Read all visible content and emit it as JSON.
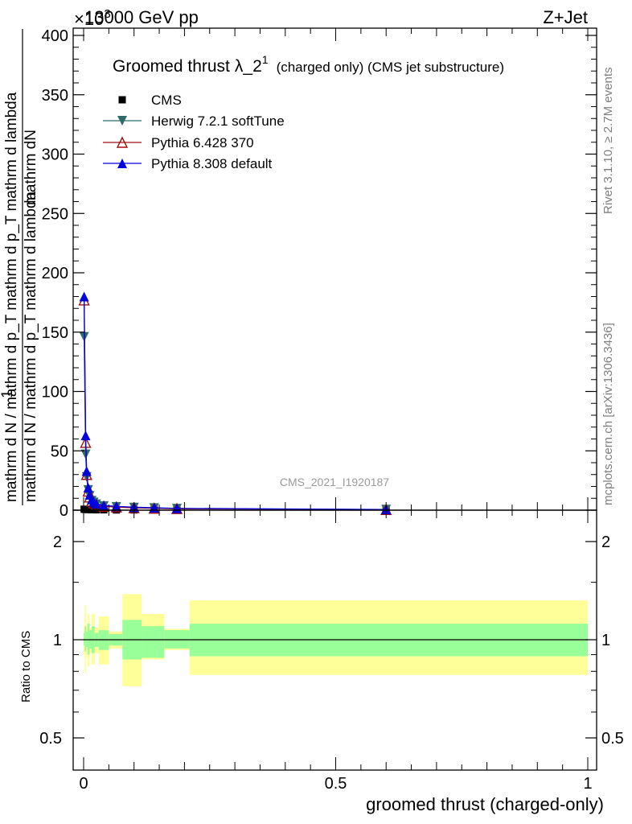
{
  "header": {
    "left_label": "13000 GeV pp",
    "right_label": "Z+Jet",
    "y_exponent": "×10",
    "y_exponent_sup": "3"
  },
  "side_labels": {
    "rivet": "Rivet 3.1.10, ≥ 2.7M events",
    "mcplots": "mcplots.cern.ch [arXiv:1306.3436]"
  },
  "watermark": "CMS_2021_I1920187",
  "colors": {
    "cms": "#000000",
    "herwig": "#2f6b6b",
    "pythia6": "#a01010",
    "pythia8": "#0000dd",
    "band_inner": "#99ff99",
    "band_outer": "#ffff99"
  },
  "chart_data": [
    {
      "type": "line",
      "panel": "main",
      "title": "Groomed thrust λ_2¹ (charged only) (CMS jet substructure)",
      "title_main": "Groomed thrust",
      "title_lambda": "λ_2",
      "title_sup": "1",
      "title_tail": "(charged only) (CMS jet substructure)",
      "ylabel_lines": [
        "mathrm d N / mathrm d p_T mathrm d lambda",
        "mathrm d N / mathrm d p_T mathrm d p_T mathrm d lambda",
        "1",
        "mathrm dN"
      ],
      "xlim": [
        0,
        1
      ],
      "ylim": [
        0,
        400
      ],
      "yticks": [
        0,
        50,
        100,
        150,
        200,
        250,
        300,
        350,
        400
      ],
      "legend_position": "top-left",
      "series": [
        {
          "name": "CMS",
          "marker": "square",
          "x": [
            0.001,
            0.004,
            0.009,
            0.016,
            0.025,
            0.04,
            0.065,
            0.1,
            0.14,
            0.185,
            0.6
          ],
          "y": [
            0.8,
            0.6,
            0.5,
            0.4,
            0.3,
            0.3,
            0.2,
            0.2,
            0.2,
            0.2,
            0.1
          ]
        },
        {
          "name": "Herwig 7.2.1 softTune",
          "marker": "triangle-down",
          "x": [
            0.001,
            0.004,
            0.006,
            0.009,
            0.012,
            0.016,
            0.02,
            0.025,
            0.04,
            0.065,
            0.1,
            0.14,
            0.185,
            0.6
          ],
          "y": [
            146,
            47,
            28,
            17,
            12,
            8,
            6.5,
            5,
            3.5,
            2.8,
            2.2,
            1.8,
            1.3,
            0.5
          ]
        },
        {
          "name": "Pythia 6.428 370",
          "marker": "triangle-open",
          "x": [
            0.001,
            0.004,
            0.006,
            0.009,
            0.012,
            0.016,
            0.02,
            0.025,
            0.04,
            0.065,
            0.1,
            0.14,
            0.185,
            0.6
          ],
          "y": [
            177,
            57,
            30,
            16,
            11,
            7.5,
            6,
            4.5,
            3.2,
            2.6,
            2.0,
            1.6,
            1.2,
            0.5
          ]
        },
        {
          "name": "Pythia 8.308 default",
          "marker": "triangle-up",
          "x": [
            0.001,
            0.004,
            0.006,
            0.009,
            0.012,
            0.016,
            0.02,
            0.025,
            0.04,
            0.065,
            0.1,
            0.14,
            0.185,
            0.6
          ],
          "y": [
            180,
            63,
            33,
            19,
            13,
            9,
            7,
            5.5,
            4,
            3.2,
            2.5,
            2.0,
            1.5,
            0.6
          ]
        }
      ]
    },
    {
      "type": "area",
      "panel": "ratio",
      "ylabel": "Ratio to CMS",
      "xlabel": "groomed thrust (charged-only)",
      "xlim": [
        0,
        1
      ],
      "ylim": [
        0.4,
        2.4
      ],
      "yscale": "log",
      "yticks": [
        0.5,
        1,
        2
      ],
      "xticks": [
        0,
        0.5,
        1
      ],
      "reference_line": 1,
      "band_edges": [
        0.0,
        0.002,
        0.005,
        0.008,
        0.012,
        0.016,
        0.022,
        0.03,
        0.05,
        0.077,
        0.115,
        0.16,
        0.21,
        1.0
      ],
      "inner_band": {
        "lo": [
          0.96,
          0.92,
          0.95,
          0.9,
          0.94,
          0.91,
          0.95,
          0.93,
          0.96,
          0.87,
          0.88,
          0.94,
          0.89
        ],
        "hi": [
          1.05,
          1.1,
          1.06,
          1.12,
          1.07,
          1.1,
          1.05,
          1.07,
          1.04,
          1.15,
          1.1,
          1.07,
          1.12
        ]
      },
      "outer_band": {
        "lo": [
          0.9,
          0.79,
          0.88,
          0.83,
          0.91,
          0.84,
          0.91,
          0.84,
          0.94,
          0.72,
          0.87,
          0.93,
          0.78
        ],
        "hi": [
          1.1,
          1.28,
          1.12,
          1.2,
          1.09,
          1.2,
          1.09,
          1.18,
          1.06,
          1.38,
          1.2,
          1.08,
          1.32
        ]
      }
    }
  ]
}
